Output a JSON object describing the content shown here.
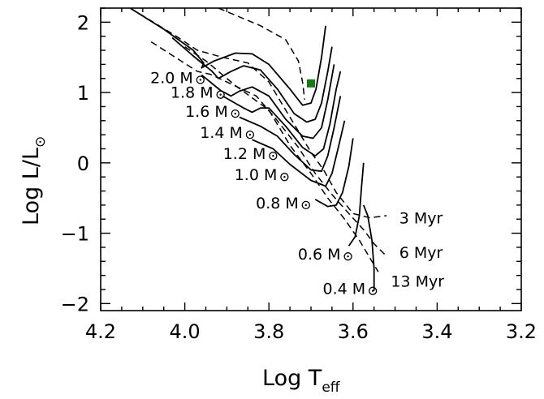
{
  "chart_data": {
    "type": "line",
    "title": "",
    "xlabel": "Log T",
    "xlabel_sub": "eff",
    "ylabel": "Log L/L",
    "ylabel_sub": "⊙",
    "xlim": [
      4.2,
      3.2
    ],
    "ylim": [
      -2.1,
      2.2
    ],
    "x_ticks": [
      4.2,
      4.0,
      3.8,
      3.6,
      3.4,
      3.2
    ],
    "x_tick_labels": [
      "4.2",
      "4.0",
      "3.8",
      "3.6",
      "3.4",
      "3.2"
    ],
    "y_ticks": [
      -2,
      -1,
      0,
      1,
      2
    ],
    "y_tick_labels": [
      "−2",
      "−1",
      "0",
      "1",
      "2"
    ],
    "tracks": [
      {
        "name": "2.0 M",
        "mass_label": "2.0 M",
        "label_point": [
          3.963,
          1.18
        ],
        "points": [
          [
            4.13,
            2.2
          ],
          [
            4.05,
            1.9
          ],
          [
            3.98,
            1.6
          ],
          [
            3.955,
            1.42
          ],
          [
            3.96,
            1.35
          ],
          [
            3.93,
            1.45
          ],
          [
            3.88,
            1.56
          ],
          [
            3.84,
            1.55
          ],
          [
            3.8,
            1.4
          ],
          [
            3.75,
            1.05
          ],
          [
            3.72,
            0.82
          ],
          [
            3.7,
            0.85
          ],
          [
            3.688,
            1.05
          ],
          [
            3.675,
            1.5
          ],
          [
            3.665,
            1.95
          ]
        ]
      },
      {
        "name": "1.8 M",
        "mass_label": "1.8 M",
        "label_point": [
          3.915,
          0.97
        ],
        "points": [
          [
            4.03,
            1.78
          ],
          [
            3.98,
            1.52
          ],
          [
            3.935,
            1.3
          ],
          [
            3.92,
            1.2
          ],
          [
            3.89,
            1.3
          ],
          [
            3.86,
            1.38
          ],
          [
            3.82,
            1.32
          ],
          [
            3.78,
            1.05
          ],
          [
            3.74,
            0.7
          ],
          [
            3.71,
            0.58
          ],
          [
            3.69,
            0.62
          ],
          [
            3.675,
            0.85
          ],
          [
            3.66,
            1.3
          ],
          [
            3.65,
            1.65
          ]
        ]
      },
      {
        "name": "1.6 M",
        "mass_label": "1.6 M",
        "label_point": [
          3.88,
          0.7
        ],
        "points": [
          [
            3.96,
            1.25
          ],
          [
            3.915,
            1.03
          ],
          [
            3.89,
            0.95
          ],
          [
            3.87,
            1.02
          ],
          [
            3.84,
            1.08
          ],
          [
            3.8,
            0.95
          ],
          [
            3.76,
            0.62
          ],
          [
            3.72,
            0.38
          ],
          [
            3.695,
            0.35
          ],
          [
            3.675,
            0.5
          ],
          [
            3.66,
            0.9
          ],
          [
            3.645,
            1.4
          ]
        ]
      },
      {
        "name": "1.4 M",
        "mass_label": "1.4 M",
        "label_point": [
          3.845,
          0.4
        ],
        "points": [
          [
            3.91,
            0.95
          ],
          [
            3.86,
            0.78
          ],
          [
            3.84,
            0.72
          ],
          [
            3.82,
            0.78
          ],
          [
            3.8,
            0.78
          ],
          [
            3.76,
            0.52
          ],
          [
            3.72,
            0.22
          ],
          [
            3.69,
            0.1
          ],
          [
            3.67,
            0.2
          ],
          [
            3.655,
            0.55
          ],
          [
            3.64,
            1.05
          ],
          [
            3.63,
            1.3
          ]
        ]
      },
      {
        "name": "1.2 M",
        "mass_label": "1.2 M",
        "label_point": [
          3.79,
          0.1
        ],
        "points": [
          [
            3.87,
            0.65
          ],
          [
            3.82,
            0.52
          ],
          [
            3.78,
            0.38
          ],
          [
            3.74,
            0.12
          ],
          [
            3.7,
            -0.1
          ],
          [
            3.675,
            -0.12
          ],
          [
            3.66,
            0.1
          ],
          [
            3.645,
            0.5
          ],
          [
            3.63,
            0.95
          ]
        ]
      },
      {
        "name": "1.0 M",
        "mass_label": "1.0 M",
        "label_point": [
          3.763,
          -0.2
        ],
        "points": [
          [
            3.84,
            0.33
          ],
          [
            3.79,
            0.2
          ],
          [
            3.75,
            -0.02
          ],
          [
            3.7,
            -0.25
          ],
          [
            3.665,
            -0.33
          ],
          [
            3.65,
            -0.15
          ],
          [
            3.635,
            0.22
          ],
          [
            3.62,
            0.6
          ]
        ]
      },
      {
        "name": "0.8 M",
        "mass_label": "0.8 M",
        "label_point": [
          3.712,
          -0.6
        ],
        "points": [
          [
            3.69,
            -0.52
          ],
          [
            3.66,
            -0.62
          ],
          [
            3.64,
            -0.6
          ],
          [
            3.625,
            -0.42
          ],
          [
            3.61,
            -0.05
          ],
          [
            3.6,
            0.35
          ]
        ]
      },
      {
        "name": "0.6 M",
        "mass_label": "0.6 M",
        "label_point": [
          3.612,
          -1.33
        ],
        "points": [
          [
            3.61,
            -1.18
          ],
          [
            3.595,
            -1.05
          ],
          [
            3.585,
            -0.75
          ],
          [
            3.58,
            -0.35
          ],
          [
            3.575,
            0.0
          ]
        ]
      },
      {
        "name": "0.4 M",
        "mass_label": "0.4 M",
        "label_point": [
          3.553,
          -1.82
        ],
        "points": [
          [
            3.55,
            -1.82
          ],
          [
            3.55,
            -1.5
          ],
          [
            3.555,
            -1.1
          ],
          [
            3.565,
            -0.75
          ],
          [
            3.575,
            -0.6
          ]
        ]
      }
    ],
    "isochrones": [
      {
        "name": "3 Myr",
        "label": "3 Myr",
        "points": [
          [
            4.13,
            2.2
          ],
          [
            4.02,
            1.8
          ],
          [
            3.97,
            1.6
          ],
          [
            3.91,
            1.5
          ],
          [
            3.85,
            1.42
          ],
          [
            3.8,
            1.15
          ],
          [
            3.77,
            0.85
          ],
          [
            3.73,
            0.45
          ],
          [
            3.7,
            0.15
          ],
          [
            3.67,
            -0.1
          ],
          [
            3.64,
            -0.42
          ],
          [
            3.6,
            -0.72
          ],
          [
            3.56,
            -0.78
          ],
          [
            3.52,
            -0.75
          ]
        ]
      },
      {
        "name": "6 Myr",
        "label": "6 Myr",
        "points": [
          [
            4.08,
            1.72
          ],
          [
            3.97,
            1.3
          ],
          [
            3.94,
            1.26
          ],
          [
            3.9,
            1.15
          ],
          [
            3.83,
            0.95
          ],
          [
            3.78,
            0.6
          ],
          [
            3.73,
            0.22
          ],
          [
            3.69,
            -0.15
          ],
          [
            3.65,
            -0.45
          ],
          [
            3.61,
            -0.72
          ],
          [
            3.575,
            -0.95
          ],
          [
            3.55,
            -1.15
          ],
          [
            3.525,
            -1.3
          ]
        ]
      },
      {
        "name": "13 Myr",
        "label": "13 Myr",
        "points": [
          [
            4.0,
            1.65
          ],
          [
            3.95,
            1.45
          ],
          [
            3.88,
            1.1
          ],
          [
            3.8,
            0.75
          ],
          [
            3.75,
            0.25
          ],
          [
            3.7,
            -0.15
          ],
          [
            3.66,
            -0.5
          ],
          [
            3.62,
            -0.8
          ],
          [
            3.585,
            -1.1
          ],
          [
            3.56,
            -1.35
          ],
          [
            3.54,
            -1.55
          ]
        ]
      },
      {
        "name": "top",
        "label": "",
        "points": [
          [
            3.92,
            2.2
          ],
          [
            3.82,
            1.95
          ],
          [
            3.76,
            1.75
          ],
          [
            3.73,
            1.45
          ],
          [
            3.72,
            1.15
          ],
          [
            3.715,
            0.9
          ]
        ]
      }
    ],
    "isochrone_label_points": {
      "3 Myr": [
        3.49,
        -0.78
      ],
      "6 Myr": [
        3.49,
        -1.27
      ],
      "13 Myr": [
        3.51,
        -1.68
      ]
    },
    "highlight_point": {
      "x": 3.7,
      "y": 1.13,
      "color": "#1a7a1a"
    }
  }
}
